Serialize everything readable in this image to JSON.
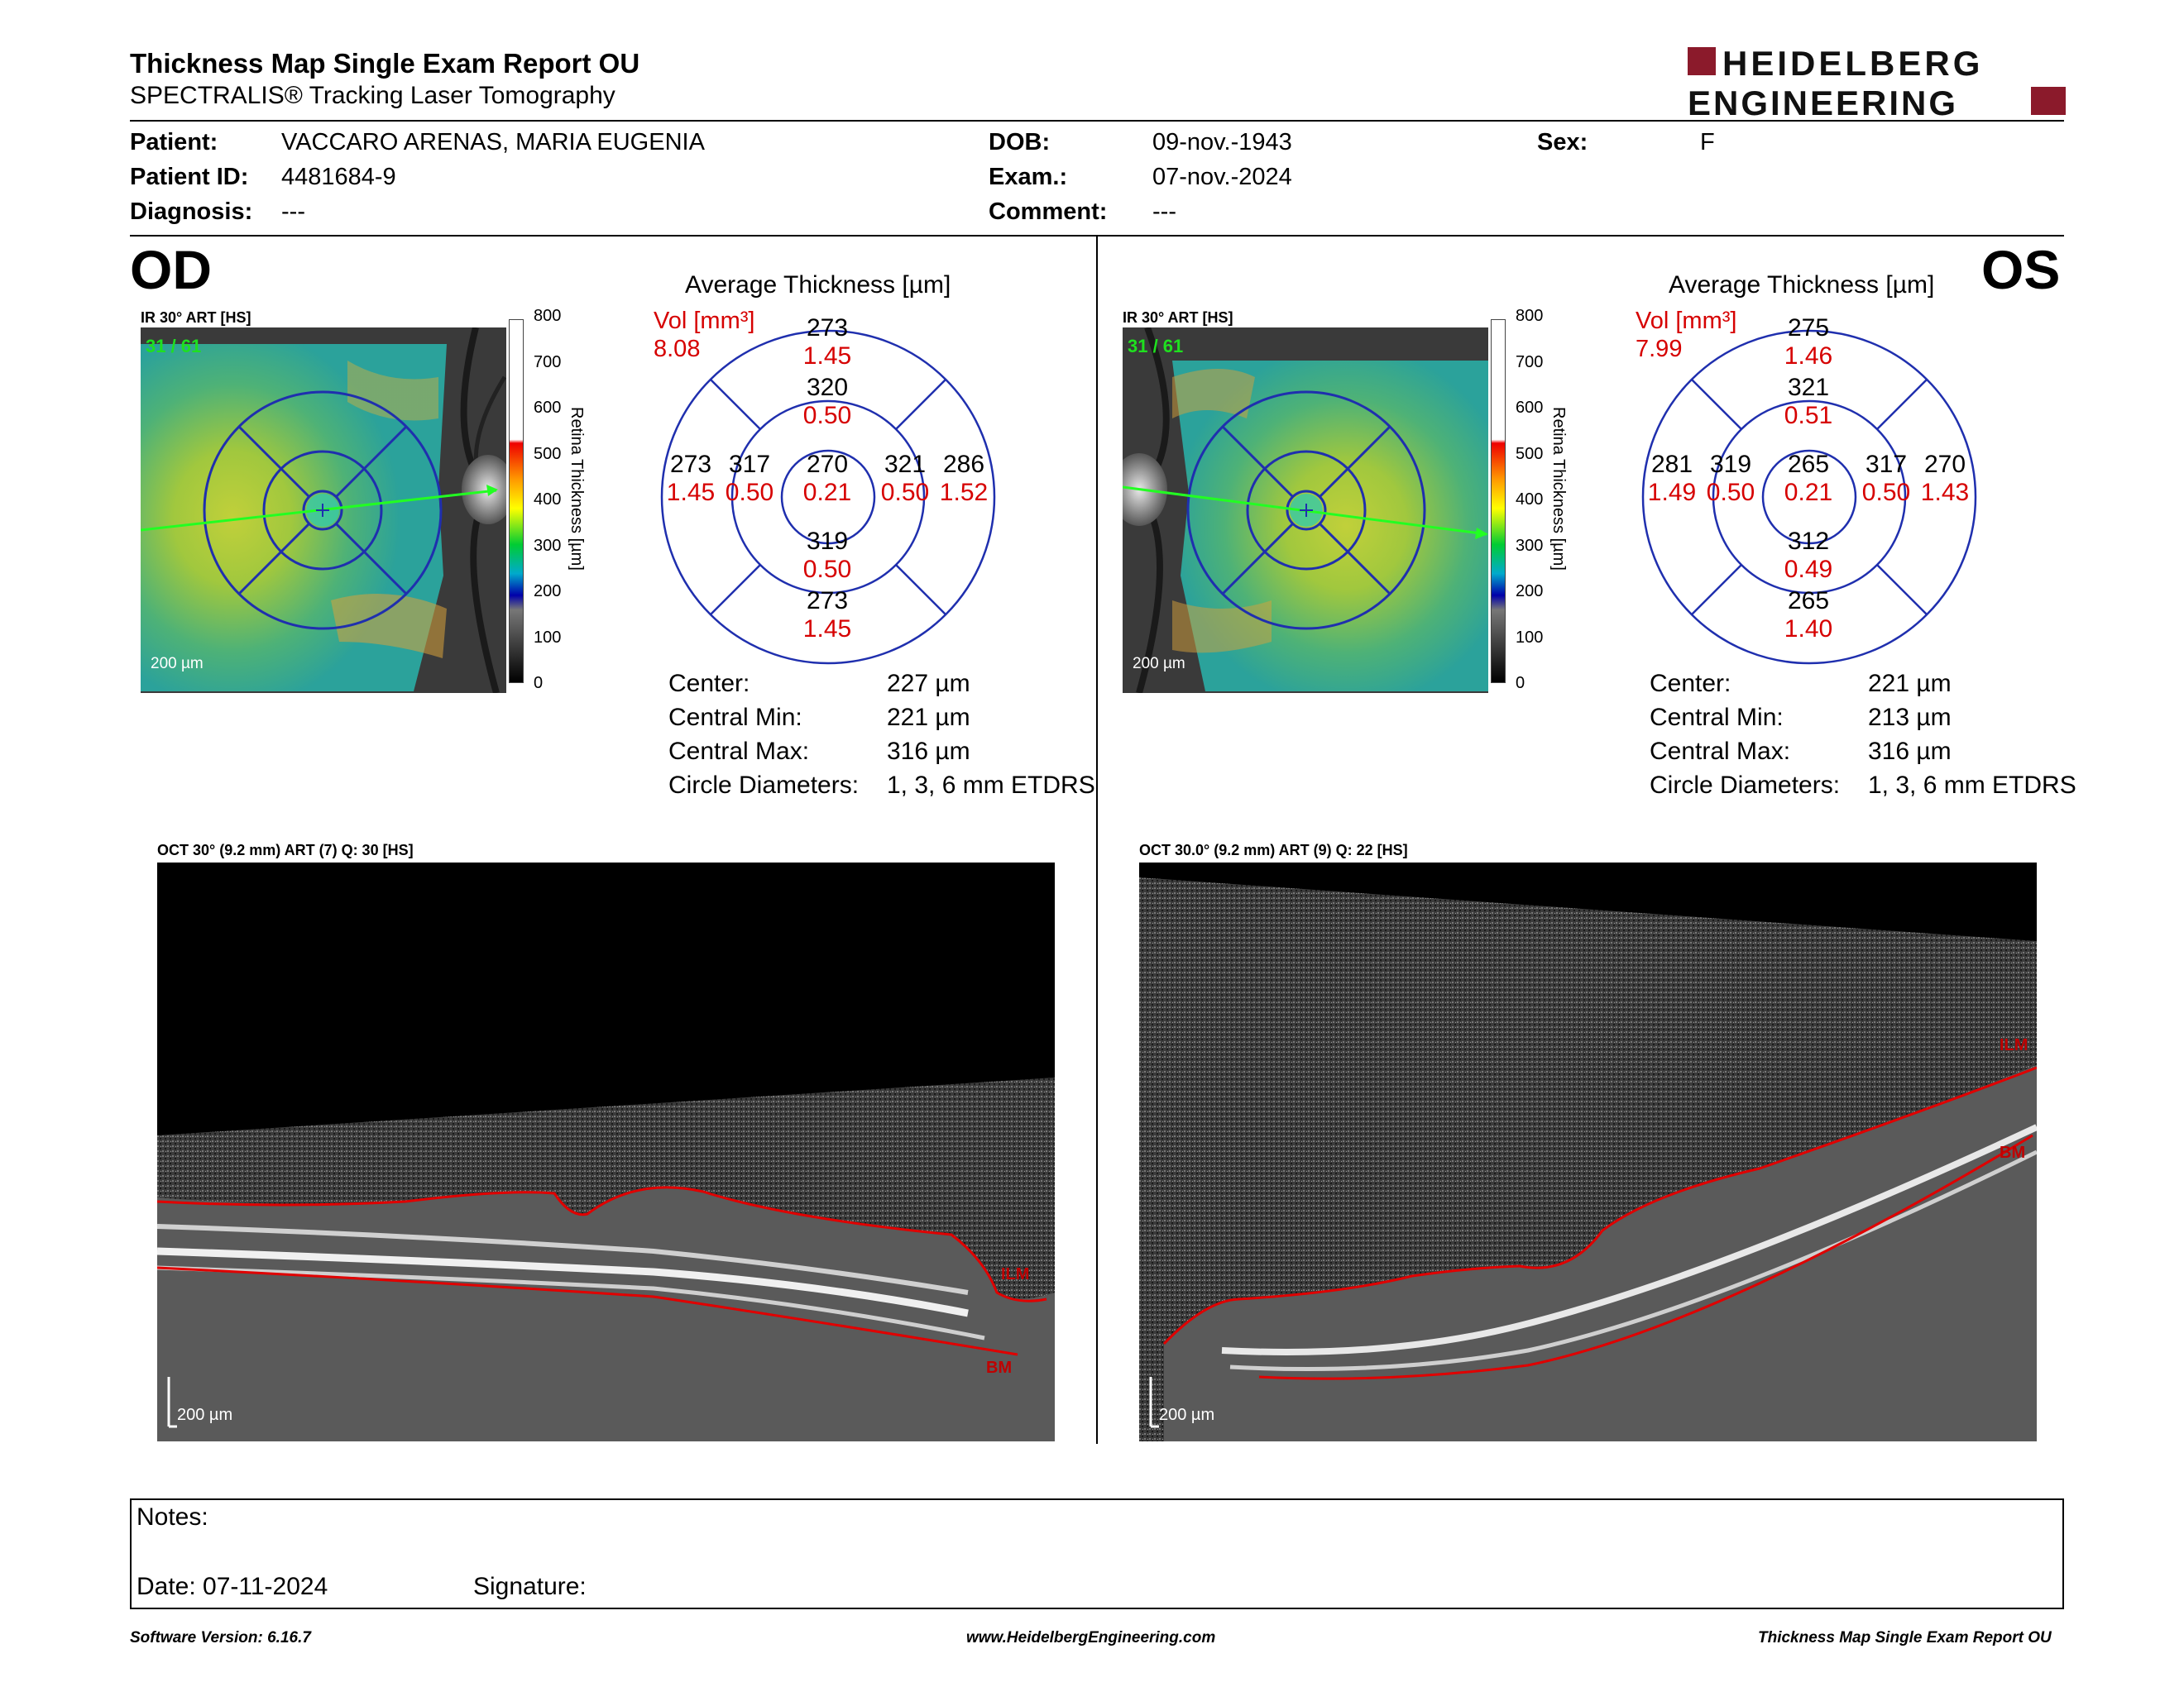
{
  "header": {
    "title": "Thickness Map Single Exam Report OU",
    "subtitle": "SPECTRALIS® Tracking Laser Tomography",
    "logo_top": "HEIDELBERG",
    "logo_bottom": "ENGINEERING",
    "logo_color": "#8b1a2b"
  },
  "patient": {
    "patient_label": "Patient:",
    "patient_value": "VACCARO ARENAS, MARIA EUGENIA",
    "id_label": "Patient ID:",
    "id_value": "4481684-9",
    "diag_label": "Diagnosis:",
    "diag_value": "---",
    "dob_label": "DOB:",
    "dob_value": "09-nov.-1943",
    "exam_label": "Exam.:",
    "exam_value": "07-nov.-2024",
    "comment_label": "Comment:",
    "comment_value": "---",
    "sex_label": "Sex:",
    "sex_value": "F"
  },
  "colorbar": {
    "ticks": [
      "800",
      "700",
      "600",
      "500",
      "400",
      "300",
      "200",
      "100",
      "0"
    ],
    "title": "Retina Thickness [µm]"
  },
  "od": {
    "eye": "OD",
    "ir_caption": "IR 30° ART [HS]",
    "slice": "31 / 61",
    "scale": "200 µm",
    "avg_title": "Average Thickness [µm]",
    "vol_label": "Vol [mm³]",
    "vol_value": "8.08",
    "sectors": {
      "outer_top": [
        "273",
        "1.45"
      ],
      "inner_top": [
        "320",
        "0.50"
      ],
      "center": [
        "270",
        "0.21"
      ],
      "inner_left": [
        "317",
        "0.50"
      ],
      "inner_right": [
        "321",
        "0.50"
      ],
      "outer_left": [
        "273",
        "1.45"
      ],
      "outer_right": [
        "286",
        "1.52"
      ],
      "inner_bottom": [
        "319",
        "0.50"
      ],
      "outer_bottom": [
        "273",
        "1.45"
      ]
    },
    "stats": {
      "center_label": "Center:",
      "center_value": "227 µm",
      "min_label": "Central Min:",
      "min_value": "221 µm",
      "max_label": "Central Max:",
      "max_value": "316 µm",
      "diam_label": "Circle Diameters:",
      "diam_value": "1, 3, 6 mm ETDRS"
    },
    "oct_caption": "OCT 30° (9.2 mm) ART (7) Q: 30 [HS]",
    "oct_scale": "200 µm",
    "ilm": "ILM",
    "bm": "BM"
  },
  "os": {
    "eye": "OS",
    "ir_caption": "IR 30° ART [HS]",
    "slice": "31 / 61",
    "scale": "200 µm",
    "avg_title": "Average Thickness [µm]",
    "vol_label": "Vol [mm³]",
    "vol_value": "7.99",
    "sectors": {
      "outer_top": [
        "275",
        "1.46"
      ],
      "inner_top": [
        "321",
        "0.51"
      ],
      "center": [
        "265",
        "0.21"
      ],
      "inner_left": [
        "319",
        "0.50"
      ],
      "inner_right": [
        "317",
        "0.50"
      ],
      "outer_left": [
        "281",
        "1.49"
      ],
      "outer_right": [
        "270",
        "1.43"
      ],
      "inner_bottom": [
        "312",
        "0.49"
      ],
      "outer_bottom": [
        "265",
        "1.40"
      ]
    },
    "stats": {
      "center_label": "Center:",
      "center_value": "221 µm",
      "min_label": "Central Min:",
      "min_value": "213 µm",
      "max_label": "Central Max:",
      "max_value": "316 µm",
      "diam_label": "Circle Diameters:",
      "diam_value": "1, 3, 6 mm ETDRS"
    },
    "oct_caption": "OCT 30.0° (9.2 mm) ART (9) Q: 22 [HS]",
    "oct_scale": "200 µm",
    "ilm": "ILM",
    "bm": "BM"
  },
  "notes": {
    "notes_label": "Notes:",
    "date_label": "Date: 07-11-2024",
    "signature_label": "Signature:"
  },
  "footer": {
    "software": "Software Version: 6.16.7",
    "url": "www.HeidelbergEngineering.com",
    "report": "Thickness Map Single Exam Report OU"
  }
}
